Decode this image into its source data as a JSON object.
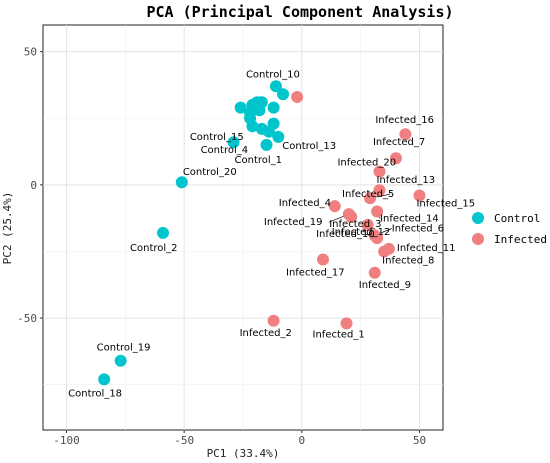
{
  "chart_data": {
    "type": "scatter",
    "title": "PCA (Principal Component Analysis)",
    "xlabel": "PC1 (33.4%)",
    "ylabel": "PC2 (25.4%)",
    "xlim": [
      -110,
      60
    ],
    "ylim": [
      -92,
      60
    ],
    "xticks": [
      -100,
      -50,
      0,
      50
    ],
    "yticks": [
      -50,
      0,
      50
    ],
    "grid": true,
    "legend_position": "right",
    "colors": {
      "Control": "#00c5cc",
      "Infected": "#f08080"
    },
    "series": [
      {
        "name": "Control",
        "points": [
          {
            "x": -11,
            "y": 37,
            "label": "Control_10"
          },
          {
            "x": -8,
            "y": 34,
            "label": ""
          },
          {
            "x": -19,
            "y": 31,
            "label": ""
          },
          {
            "x": -21,
            "y": 30,
            "label": ""
          },
          {
            "x": -17,
            "y": 31,
            "label": ""
          },
          {
            "x": -26,
            "y": 29,
            "label": ""
          },
          {
            "x": -22,
            "y": 27,
            "label": ""
          },
          {
            "x": -18,
            "y": 28,
            "label": ""
          },
          {
            "x": -12,
            "y": 29,
            "label": ""
          },
          {
            "x": -22,
            "y": 25,
            "label": ""
          },
          {
            "x": -21,
            "y": 22,
            "label": ""
          },
          {
            "x": -12,
            "y": 23,
            "label": ""
          },
          {
            "x": -17,
            "y": 21,
            "label": "Control_15"
          },
          {
            "x": -14,
            "y": 20,
            "label": ""
          },
          {
            "x": -10,
            "y": 18,
            "label": "Control_13"
          },
          {
            "x": -29,
            "y": 16,
            "label": "Control_4"
          },
          {
            "x": -15,
            "y": 15,
            "label": "Control_1"
          },
          {
            "x": -51,
            "y": 1,
            "label": "Control_20"
          },
          {
            "x": -59,
            "y": -18,
            "label": "Control_2"
          },
          {
            "x": -77,
            "y": -66,
            "label": "Control_19"
          },
          {
            "x": -84,
            "y": -73,
            "label": "Control_18"
          }
        ]
      },
      {
        "name": "Infected",
        "points": [
          {
            "x": -2,
            "y": 33,
            "label": ""
          },
          {
            "x": 44,
            "y": 19,
            "label": "Infected_16"
          },
          {
            "x": 40,
            "y": 10,
            "label": "Infected_7"
          },
          {
            "x": 33,
            "y": 5,
            "label": "Infected_20"
          },
          {
            "x": 33,
            "y": -2,
            "label": "Infected_13"
          },
          {
            "x": 29,
            "y": -5,
            "label": "Infected_5"
          },
          {
            "x": 50,
            "y": -4,
            "label": "Infected_15"
          },
          {
            "x": 14,
            "y": -8,
            "label": "Infected_4"
          },
          {
            "x": 21,
            "y": -12,
            "label": "Infected_3"
          },
          {
            "x": 20,
            "y": -11,
            "label": "Infected_19"
          },
          {
            "x": 32,
            "y": -10,
            "label": "Infected_14"
          },
          {
            "x": 28,
            "y": -15,
            "label": "Infected_12"
          },
          {
            "x": 31,
            "y": -19,
            "label": "Infected_6"
          },
          {
            "x": 32,
            "y": -20,
            "label": "Infected_10"
          },
          {
            "x": 37,
            "y": -24,
            "label": "Infected_11"
          },
          {
            "x": 35,
            "y": -25,
            "label": "Infected_8"
          },
          {
            "x": 9,
            "y": -28,
            "label": "Infected_17"
          },
          {
            "x": 31,
            "y": -33,
            "label": "Infected_9"
          },
          {
            "x": -12,
            "y": -51,
            "label": "Infected_2"
          },
          {
            "x": 19,
            "y": -52,
            "label": "Infected_1"
          }
        ]
      }
    ]
  }
}
